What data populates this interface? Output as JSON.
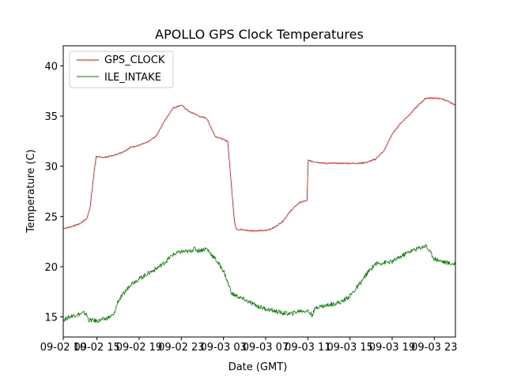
{
  "chart_data": {
    "type": "line",
    "title": "APOLLO GPS Clock Temperatures",
    "xlabel": "Date (GMT)",
    "ylabel": "Temperature (C)",
    "x_unit": "hours",
    "xlim": [
      0,
      46.5
    ],
    "ylim": [
      13,
      42
    ],
    "x_ticks": [
      {
        "value": 0,
        "label": "09-02 10"
      },
      {
        "value": 4,
        "label": "09-02 15"
      },
      {
        "value": 9,
        "label": "09-02 19"
      },
      {
        "value": 14,
        "label": "09-02 23"
      },
      {
        "value": 19,
        "label": "09-03 03"
      },
      {
        "value": 24,
        "label": "09-03 07"
      },
      {
        "value": 29,
        "label": "09-03 11"
      },
      {
        "value": 34,
        "label": "09-03 15"
      },
      {
        "value": 39,
        "label": "09-03 19"
      },
      {
        "value": 44,
        "label": "09-03 23"
      }
    ],
    "y_ticks": [
      15,
      20,
      25,
      30,
      35,
      40
    ],
    "grid": false,
    "legend_position": "top-left",
    "series": [
      {
        "name": "GPS_CLOCK",
        "color": "#ff0000",
        "x": [
          0,
          1,
          2,
          2.8,
          3.2,
          3.6,
          3.9,
          4.2,
          5,
          6,
          7,
          8,
          9,
          10,
          11,
          12,
          13,
          14,
          15,
          15.7,
          16,
          17,
          18,
          19.5,
          20.3,
          20.5,
          20.8,
          21,
          22,
          23,
          24,
          25,
          26,
          27,
          28,
          28.9,
          29.05,
          29.5,
          31,
          33,
          35,
          36,
          37,
          38,
          39,
          40,
          41,
          42,
          43,
          44,
          45,
          46,
          46.5
        ],
        "y": [
          23.8,
          24,
          24.3,
          24.8,
          26,
          29,
          31,
          30.9,
          30.9,
          31.1,
          31.4,
          31.9,
          32.1,
          32.4,
          33,
          34.5,
          35.8,
          36.1,
          35.4,
          35.2,
          35,
          34.8,
          33,
          32.5,
          24.5,
          23.8,
          23.7,
          23.7,
          23.6,
          23.6,
          23.6,
          23.9,
          24.5,
          25.6,
          26.4,
          26.6,
          30.6,
          30.5,
          30.3,
          30.3,
          30.3,
          30.4,
          30.7,
          31.5,
          33.2,
          34.3,
          35.1,
          36,
          36.8,
          36.8,
          36.7,
          36.3,
          36.1
        ]
      },
      {
        "name": "ILE_INTAKE",
        "color": "#008000",
        "x": [
          0,
          1,
          1.5,
          2.5,
          2.8,
          3,
          4,
          5,
          6,
          6.5,
          7,
          8,
          9,
          10,
          11,
          12,
          13,
          14,
          15,
          15.5,
          16,
          17,
          18,
          19,
          20,
          21,
          22,
          23,
          24,
          25,
          26,
          27,
          28,
          29,
          29.5,
          30,
          31,
          32,
          33,
          34,
          35,
          36,
          37,
          38,
          39,
          40,
          41,
          42,
          43,
          44,
          45,
          46,
          46.5
        ],
        "y": [
          14.7,
          15.1,
          15.2,
          15.4,
          15.2,
          14.7,
          14.6,
          14.8,
          15.2,
          16.6,
          17.1,
          18.3,
          18.8,
          19.3,
          19.8,
          20.4,
          21.2,
          21.5,
          21.5,
          21.8,
          21.6,
          21.8,
          20.8,
          19.6,
          17.3,
          16.9,
          16.5,
          16.1,
          15.8,
          15.6,
          15.4,
          15.3,
          15.6,
          15.6,
          15.2,
          16,
          16.1,
          16.3,
          16.5,
          17.1,
          18.1,
          19.3,
          20.3,
          20.4,
          20.5,
          21,
          21.5,
          21.8,
          22.1,
          20.8,
          20.5,
          20.3,
          20.3
        ]
      }
    ]
  }
}
